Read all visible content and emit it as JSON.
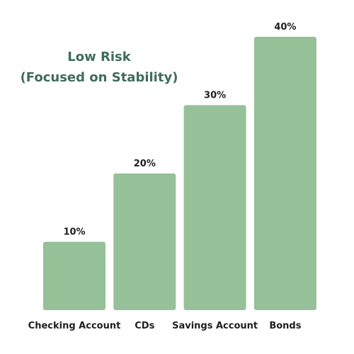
{
  "chart_data": {
    "type": "bar",
    "title_lines": [
      "Low Risk",
      "(Focused on Stability)"
    ],
    "categories": [
      "Checking Account",
      "CDs",
      "Savings Account",
      "Bonds"
    ],
    "values": [
      10,
      20,
      30,
      40
    ],
    "data_labels": [
      "10%",
      "20%",
      "30%",
      "40%"
    ],
    "ylim": [
      0,
      40
    ],
    "grid": false,
    "legend": "none",
    "bar_color": "#95c098"
  }
}
